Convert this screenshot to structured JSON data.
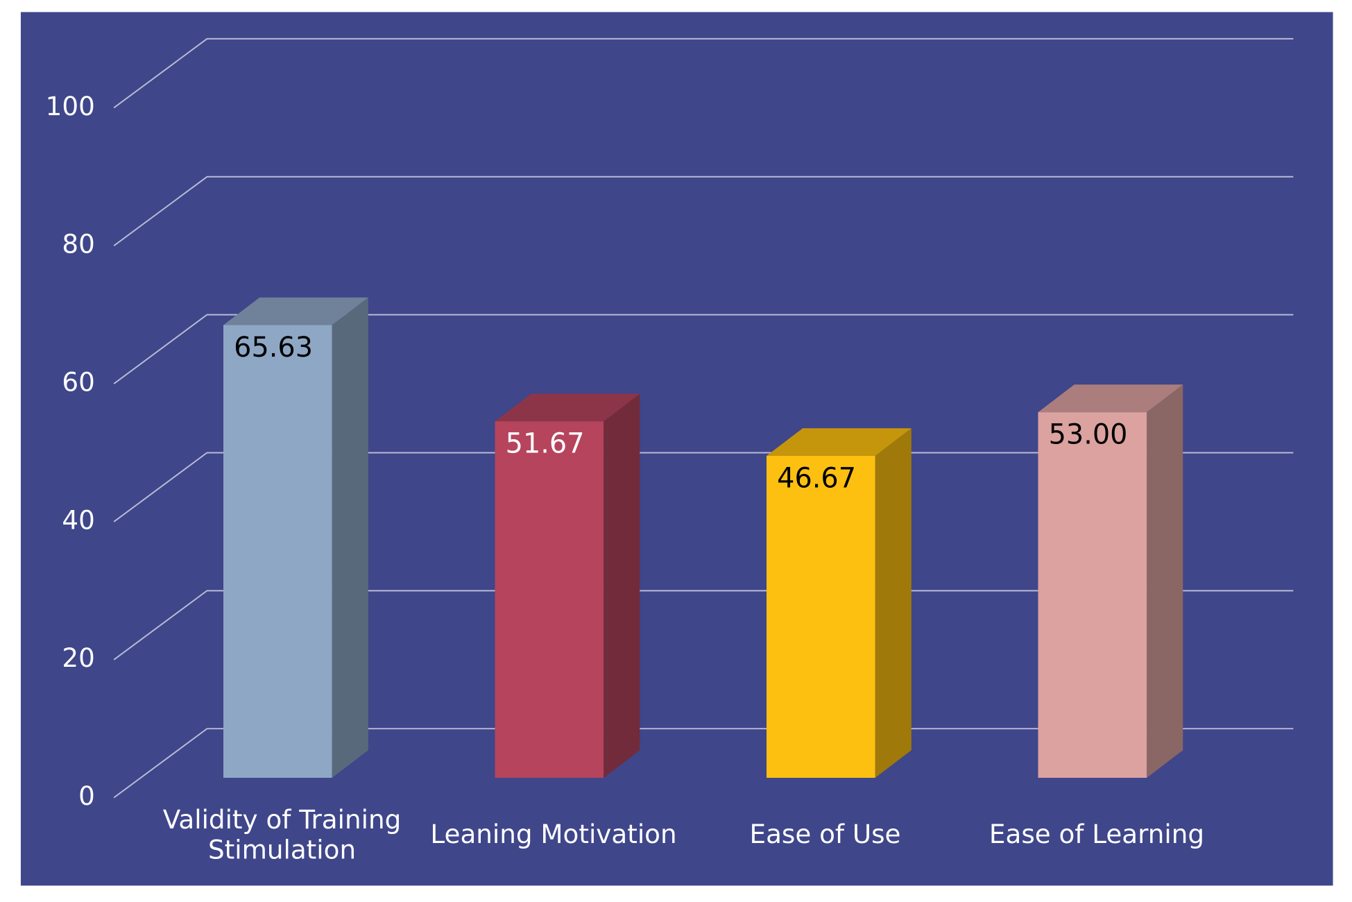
{
  "chart_data": {
    "type": "bar3d",
    "categories": [
      "Validity of Training\nStimulation",
      "Leaning Motivation",
      "Ease of Use",
      "Ease of Learning"
    ],
    "values": [
      65.63,
      51.67,
      46.67,
      53
    ],
    "value_labels": [
      "65.63",
      "51.67",
      "46.67",
      "53.00"
    ],
    "colors": [
      "#8ea7c5",
      "#b5445c",
      "#fdc010",
      "#dba2a0"
    ],
    "ylim": [
      0,
      100
    ],
    "yticks": [
      0,
      20,
      40,
      60,
      80,
      100
    ],
    "grid": true,
    "background": "#3f468a"
  }
}
